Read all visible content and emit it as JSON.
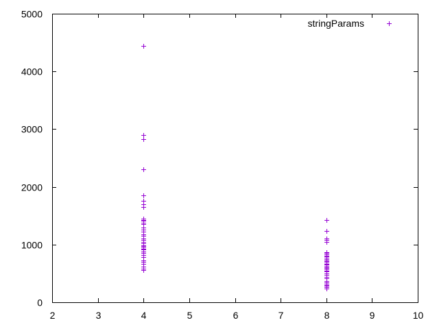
{
  "chart_data": {
    "type": "scatter",
    "title": "",
    "xlabel": "",
    "ylabel": "",
    "xlim": [
      2,
      10
    ],
    "ylim": [
      0,
      5000
    ],
    "xticks": [
      2,
      3,
      4,
      5,
      6,
      7,
      8,
      9,
      10
    ],
    "yticks": [
      0,
      1000,
      2000,
      3000,
      4000,
      5000
    ],
    "legend": {
      "placement": "top-right",
      "label": "stringParams"
    },
    "marker": "+",
    "series": [
      {
        "name": "stringParams",
        "color": "#9400D3",
        "points": [
          [
            4,
            4440
          ],
          [
            4,
            2900
          ],
          [
            4,
            2830
          ],
          [
            4,
            2300
          ],
          [
            4,
            1850
          ],
          [
            4,
            1760
          ],
          [
            4,
            1700
          ],
          [
            4,
            1650
          ],
          [
            4,
            1450
          ],
          [
            4,
            1430
          ],
          [
            4,
            1410
          ],
          [
            4,
            1380
          ],
          [
            4,
            1350
          ],
          [
            4,
            1300
          ],
          [
            4,
            1260
          ],
          [
            4,
            1220
          ],
          [
            4,
            1180
          ],
          [
            4,
            1150
          ],
          [
            4,
            1110
          ],
          [
            4,
            1080
          ],
          [
            4,
            1050
          ],
          [
            4,
            1020
          ],
          [
            4,
            990
          ],
          [
            4,
            970
          ],
          [
            4,
            950
          ],
          [
            4,
            930
          ],
          [
            4,
            910
          ],
          [
            4,
            880
          ],
          [
            4,
            850
          ],
          [
            4,
            820
          ],
          [
            4,
            780
          ],
          [
            4,
            730
          ],
          [
            4,
            700
          ],
          [
            4,
            660
          ],
          [
            4,
            620
          ],
          [
            4,
            580
          ],
          [
            4,
            560
          ],
          [
            8,
            1430
          ],
          [
            8,
            1230
          ],
          [
            8,
            1110
          ],
          [
            8,
            1080
          ],
          [
            8,
            1050
          ],
          [
            8,
            870
          ],
          [
            8,
            850
          ],
          [
            8,
            830
          ],
          [
            8,
            810
          ],
          [
            8,
            790
          ],
          [
            8,
            770
          ],
          [
            8,
            750
          ],
          [
            8,
            730
          ],
          [
            8,
            710
          ],
          [
            8,
            690
          ],
          [
            8,
            670
          ],
          [
            8,
            650
          ],
          [
            8,
            630
          ],
          [
            8,
            610
          ],
          [
            8,
            590
          ],
          [
            8,
            570
          ],
          [
            8,
            550
          ],
          [
            8,
            530
          ],
          [
            8,
            500
          ],
          [
            8,
            470
          ],
          [
            8,
            440
          ],
          [
            8,
            410
          ],
          [
            8,
            370
          ],
          [
            8,
            340
          ],
          [
            8,
            320
          ],
          [
            8,
            300
          ],
          [
            8,
            280
          ],
          [
            8,
            260
          ],
          [
            8,
            240
          ]
        ]
      }
    ]
  }
}
